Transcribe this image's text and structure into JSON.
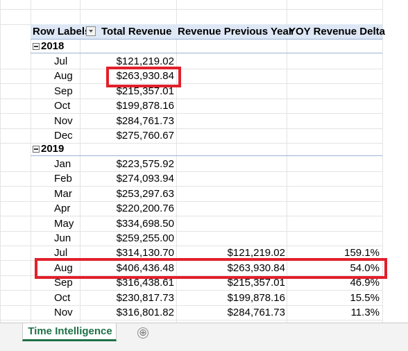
{
  "headers": {
    "row_labels": "Row Labels",
    "total_revenue": "Total Revenue",
    "revenue_previous_year": "Revenue Previous Year",
    "yoy_revenue_delta": "YOY Revenue Delta"
  },
  "years": {
    "y2018": "2018",
    "y2019": "2019"
  },
  "rows2018": [
    {
      "month": "Jul",
      "total": "$121,219.02",
      "prev": "",
      "delta": ""
    },
    {
      "month": "Aug",
      "total": "$263,930.84",
      "prev": "",
      "delta": ""
    },
    {
      "month": "Sep",
      "total": "$215,357.01",
      "prev": "",
      "delta": ""
    },
    {
      "month": "Oct",
      "total": "$199,878.16",
      "prev": "",
      "delta": ""
    },
    {
      "month": "Nov",
      "total": "$284,761.73",
      "prev": "",
      "delta": ""
    },
    {
      "month": "Dec",
      "total": "$275,760.67",
      "prev": "",
      "delta": ""
    }
  ],
  "rows2019": [
    {
      "month": "Jan",
      "total": "$223,575.92",
      "prev": "",
      "delta": ""
    },
    {
      "month": "Feb",
      "total": "$274,093.94",
      "prev": "",
      "delta": ""
    },
    {
      "month": "Mar",
      "total": "$253,297.63",
      "prev": "",
      "delta": ""
    },
    {
      "month": "Apr",
      "total": "$220,200.76",
      "prev": "",
      "delta": ""
    },
    {
      "month": "May",
      "total": "$334,698.50",
      "prev": "",
      "delta": ""
    },
    {
      "month": "Jun",
      "total": "$259,255.00",
      "prev": "",
      "delta": ""
    },
    {
      "month": "Jul",
      "total": "$314,130.70",
      "prev": "$121,219.02",
      "delta": "159.1%"
    },
    {
      "month": "Aug",
      "total": "$406,436.48",
      "prev": "$263,930.84",
      "delta": "54.0%"
    },
    {
      "month": "Sep",
      "total": "$316,438.61",
      "prev": "$215,357.01",
      "delta": "46.9%"
    },
    {
      "month": "Oct",
      "total": "$230,817.73",
      "prev": "$199,878.16",
      "delta": "15.5%"
    },
    {
      "month": "Nov",
      "total": "$316,801.82",
      "prev": "$284,761.73",
      "delta": "11.3%"
    }
  ],
  "sheet_tab": {
    "label": "Time Intelligence",
    "add_icon": "⊕"
  },
  "colors": {
    "highlight": "#e2202a",
    "tab_accent": "#1e7145",
    "header_fill": "#dde7f5"
  }
}
